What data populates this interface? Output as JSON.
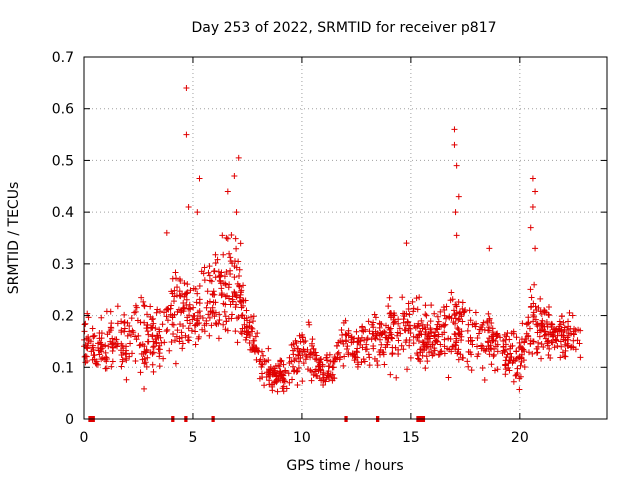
{
  "chart_data": {
    "type": "scatter",
    "title": "Day 253 of 2022, SRMTID for receiver p817",
    "xlabel": "GPS time / hours",
    "ylabel": "SRMTID / TECUs",
    "xlim": [
      0,
      24
    ],
    "ylim": [
      0,
      0.7
    ],
    "x_ticks": [
      0,
      5,
      10,
      15,
      20
    ],
    "x_tick_labels": [
      "0",
      "5",
      "10",
      "15",
      "20"
    ],
    "y_ticks": [
      0,
      0.1,
      0.2,
      0.3,
      0.4,
      0.5,
      0.6,
      0.7
    ],
    "y_tick_labels": [
      "0",
      "0.1",
      "0.2",
      "0.3",
      "0.4",
      "0.5",
      "0.6",
      "0.7"
    ],
    "grid": true,
    "marker": "+",
    "color": "#e00000",
    "envelope": [
      {
        "x": 0.0,
        "lo": 0.08,
        "hi": 0.22
      },
      {
        "x": 1.0,
        "lo": 0.05,
        "hi": 0.22
      },
      {
        "x": 2.0,
        "lo": 0.05,
        "hi": 0.25
      },
      {
        "x": 2.5,
        "lo": 0.04,
        "hi": 0.3
      },
      {
        "x": 3.5,
        "lo": 0.06,
        "hi": 0.24
      },
      {
        "x": 4.0,
        "lo": 0.07,
        "hi": 0.33
      },
      {
        "x": 5.0,
        "lo": 0.1,
        "hi": 0.3
      },
      {
        "x": 5.5,
        "lo": 0.1,
        "hi": 0.33
      },
      {
        "x": 6.2,
        "lo": 0.13,
        "hi": 0.38
      },
      {
        "x": 7.0,
        "lo": 0.12,
        "hi": 0.42
      },
      {
        "x": 7.6,
        "lo": 0.1,
        "hi": 0.22
      },
      {
        "x": 8.5,
        "lo": 0.04,
        "hi": 0.14
      },
      {
        "x": 9.2,
        "lo": 0.03,
        "hi": 0.13
      },
      {
        "x": 10.0,
        "lo": 0.05,
        "hi": 0.24
      },
      {
        "x": 11.0,
        "lo": 0.05,
        "hi": 0.13
      },
      {
        "x": 12.0,
        "lo": 0.08,
        "hi": 0.2
      },
      {
        "x": 13.0,
        "lo": 0.08,
        "hi": 0.22
      },
      {
        "x": 14.5,
        "lo": 0.07,
        "hi": 0.26
      },
      {
        "x": 15.0,
        "lo": 0.08,
        "hi": 0.28
      },
      {
        "x": 16.0,
        "lo": 0.07,
        "hi": 0.23
      },
      {
        "x": 17.0,
        "lo": 0.07,
        "hi": 0.3
      },
      {
        "x": 18.0,
        "lo": 0.06,
        "hi": 0.25
      },
      {
        "x": 19.0,
        "lo": 0.07,
        "hi": 0.22
      },
      {
        "x": 20.0,
        "lo": 0.05,
        "hi": 0.18
      },
      {
        "x": 20.6,
        "lo": 0.09,
        "hi": 0.3
      },
      {
        "x": 21.5,
        "lo": 0.1,
        "hi": 0.22
      },
      {
        "x": 22.8,
        "lo": 0.09,
        "hi": 0.22
      }
    ],
    "n_points": 1400,
    "spikes": [
      {
        "x": 4.7,
        "y": 0.64
      },
      {
        "x": 4.7,
        "y": 0.55
      },
      {
        "x": 4.8,
        "y": 0.41
      },
      {
        "x": 5.3,
        "y": 0.465
      },
      {
        "x": 5.2,
        "y": 0.4
      },
      {
        "x": 7.1,
        "y": 0.505
      },
      {
        "x": 6.9,
        "y": 0.47
      },
      {
        "x": 6.6,
        "y": 0.44
      },
      {
        "x": 7.0,
        "y": 0.4
      },
      {
        "x": 3.8,
        "y": 0.36
      },
      {
        "x": 14.8,
        "y": 0.34
      },
      {
        "x": 17.0,
        "y": 0.56
      },
      {
        "x": 17.0,
        "y": 0.53
      },
      {
        "x": 17.1,
        "y": 0.49
      },
      {
        "x": 17.2,
        "y": 0.43
      },
      {
        "x": 17.05,
        "y": 0.4
      },
      {
        "x": 17.1,
        "y": 0.355
      },
      {
        "x": 20.6,
        "y": 0.465
      },
      {
        "x": 20.7,
        "y": 0.44
      },
      {
        "x": 20.6,
        "y": 0.41
      },
      {
        "x": 20.5,
        "y": 0.37
      },
      {
        "x": 20.7,
        "y": 0.33
      },
      {
        "x": 18.6,
        "y": 0.33
      }
    ],
    "gap_markers": [
      {
        "start": 0.2,
        "end": 0.5
      },
      {
        "start": 4.0,
        "end": 4.15
      },
      {
        "start": 4.6,
        "end": 4.75
      },
      {
        "start": 5.85,
        "end": 6.0
      },
      {
        "start": 11.95,
        "end": 12.1
      },
      {
        "start": 13.4,
        "end": 13.55
      },
      {
        "start": 15.25,
        "end": 15.65
      }
    ]
  }
}
